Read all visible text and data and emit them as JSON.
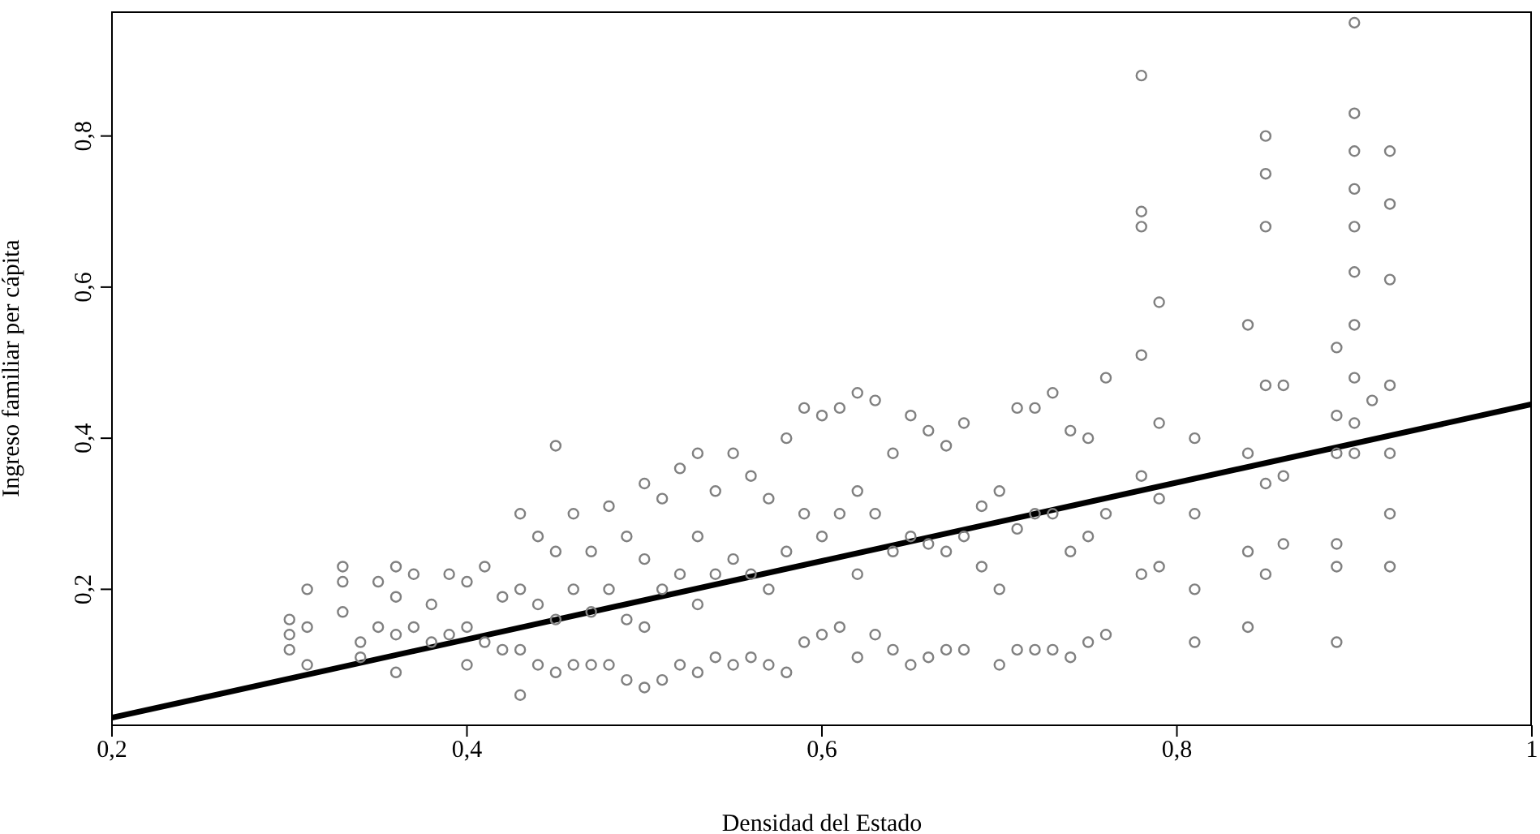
{
  "chart_data": {
    "type": "scatter",
    "xlabel": "Densidad del Estado",
    "ylabel": "Ingreso familiar per cápita",
    "xlim": [
      0.2,
      1
    ],
    "ylim": [
      0.02,
      0.965
    ],
    "xticks": [
      {
        "value": 0.2,
        "label": "0,2"
      },
      {
        "value": 0.4,
        "label": "0,4"
      },
      {
        "value": 0.6,
        "label": "0,6"
      },
      {
        "value": 0.8,
        "label": "0,8"
      },
      1
    ],
    "yticks": [
      {
        "value": 0.2,
        "label": "0,2"
      },
      {
        "value": 0.4,
        "label": "0,4"
      },
      {
        "value": 0.6,
        "label": "0,6"
      },
      {
        "value": 0.8,
        "label": "0,8"
      }
    ],
    "grid": false,
    "legend": false,
    "series": [
      {
        "marker": "circle",
        "color": "#808080",
        "x": [
          0.3,
          0.3,
          0.3,
          0.31,
          0.31,
          0.31,
          0.33,
          0.33,
          0.33,
          0.34,
          0.34,
          0.35,
          0.35,
          0.36,
          0.36,
          0.36,
          0.36,
          0.37,
          0.37,
          0.38,
          0.38,
          0.39,
          0.39,
          0.4,
          0.4,
          0.4,
          0.41,
          0.41,
          0.42,
          0.42,
          0.43,
          0.43,
          0.43,
          0.43,
          0.44,
          0.44,
          0.44,
          0.45,
          0.45,
          0.45,
          0.45,
          0.46,
          0.46,
          0.46,
          0.47,
          0.47,
          0.47,
          0.48,
          0.48,
          0.48,
          0.49,
          0.49,
          0.49,
          0.5,
          0.5,
          0.5,
          0.5,
          0.51,
          0.51,
          0.51,
          0.52,
          0.52,
          0.52,
          0.53,
          0.53,
          0.53,
          0.53,
          0.54,
          0.54,
          0.54,
          0.55,
          0.55,
          0.55,
          0.56,
          0.56,
          0.56,
          0.57,
          0.57,
          0.57,
          0.58,
          0.58,
          0.58,
          0.59,
          0.59,
          0.59,
          0.6,
          0.6,
          0.6,
          0.61,
          0.61,
          0.61,
          0.62,
          0.62,
          0.62,
          0.62,
          0.63,
          0.63,
          0.63,
          0.64,
          0.64,
          0.64,
          0.65,
          0.65,
          0.65,
          0.66,
          0.66,
          0.66,
          0.67,
          0.67,
          0.67,
          0.68,
          0.68,
          0.68,
          0.69,
          0.69,
          0.7,
          0.7,
          0.7,
          0.71,
          0.71,
          0.71,
          0.72,
          0.72,
          0.72,
          0.73,
          0.73,
          0.73,
          0.74,
          0.74,
          0.74,
          0.75,
          0.75,
          0.75,
          0.76,
          0.76,
          0.76,
          0.78,
          0.78,
          0.78,
          0.78,
          0.78,
          0.78,
          0.79,
          0.79,
          0.79,
          0.79,
          0.81,
          0.81,
          0.81,
          0.81,
          0.84,
          0.84,
          0.84,
          0.84,
          0.85,
          0.85,
          0.85,
          0.85,
          0.85,
          0.85,
          0.86,
          0.86,
          0.86,
          0.89,
          0.89,
          0.89,
          0.89,
          0.89,
          0.89,
          0.9,
          0.9,
          0.9,
          0.9,
          0.9,
          0.9,
          0.9,
          0.9,
          0.9,
          0.9,
          0.91,
          0.92,
          0.92,
          0.92,
          0.92,
          0.92,
          0.92,
          0.92
        ],
        "values": [
          0.12,
          0.14,
          0.16,
          0.1,
          0.15,
          0.2,
          0.17,
          0.21,
          0.23,
          0.11,
          0.13,
          0.15,
          0.21,
          0.09,
          0.14,
          0.19,
          0.23,
          0.15,
          0.22,
          0.13,
          0.18,
          0.14,
          0.22,
          0.1,
          0.15,
          0.21,
          0.13,
          0.23,
          0.12,
          0.19,
          0.06,
          0.12,
          0.2,
          0.3,
          0.1,
          0.18,
          0.27,
          0.09,
          0.16,
          0.25,
          0.39,
          0.1,
          0.2,
          0.3,
          0.1,
          0.17,
          0.25,
          0.1,
          0.2,
          0.31,
          0.08,
          0.16,
          0.27,
          0.07,
          0.15,
          0.24,
          0.34,
          0.08,
          0.2,
          0.32,
          0.1,
          0.22,
          0.36,
          0.09,
          0.18,
          0.27,
          0.38,
          0.11,
          0.22,
          0.33,
          0.1,
          0.24,
          0.38,
          0.11,
          0.22,
          0.35,
          0.1,
          0.2,
          0.32,
          0.09,
          0.25,
          0.4,
          0.13,
          0.3,
          0.44,
          0.14,
          0.27,
          0.43,
          0.15,
          0.3,
          0.44,
          0.11,
          0.22,
          0.33,
          0.46,
          0.14,
          0.3,
          0.45,
          0.12,
          0.25,
          0.38,
          0.1,
          0.27,
          0.43,
          0.11,
          0.26,
          0.41,
          0.12,
          0.25,
          0.39,
          0.12,
          0.27,
          0.42,
          0.23,
          0.31,
          0.1,
          0.2,
          0.33,
          0.12,
          0.28,
          0.44,
          0.12,
          0.3,
          0.44,
          0.12,
          0.3,
          0.46,
          0.11,
          0.25,
          0.41,
          0.13,
          0.27,
          0.4,
          0.14,
          0.3,
          0.48,
          0.22,
          0.35,
          0.51,
          0.68,
          0.7,
          0.88,
          0.23,
          0.32,
          0.42,
          0.58,
          0.13,
          0.2,
          0.3,
          0.4,
          0.15,
          0.25,
          0.38,
          0.55,
          0.22,
          0.34,
          0.47,
          0.68,
          0.75,
          0.8,
          0.26,
          0.35,
          0.47,
          0.13,
          0.23,
          0.26,
          0.38,
          0.43,
          0.52,
          0.38,
          0.42,
          0.48,
          0.55,
          0.62,
          0.68,
          0.73,
          0.78,
          0.83,
          0.95,
          0.45,
          0.23,
          0.3,
          0.38,
          0.47,
          0.61,
          0.71,
          0.78
        ]
      },
      {
        "type": "line",
        "color": "#000000",
        "x": [
          0.2,
          1
        ],
        "values": [
          0.03,
          0.445
        ]
      }
    ]
  }
}
